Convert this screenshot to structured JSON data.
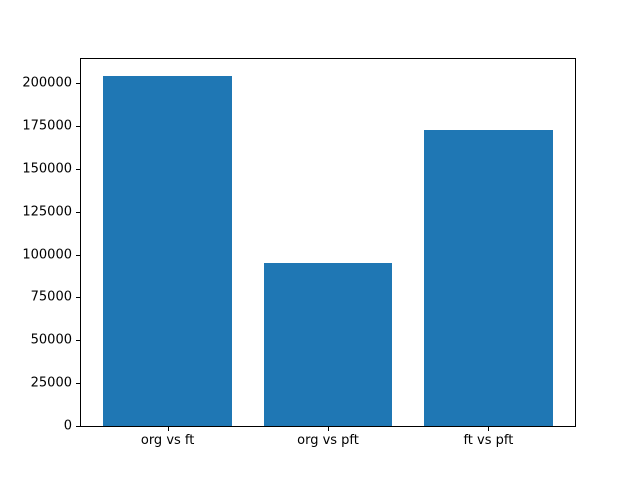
{
  "chart_data": {
    "type": "bar",
    "categories": [
      "org vs ft",
      "org vs pft",
      "ft vs pft"
    ],
    "values": [
      204000,
      95000,
      173000
    ],
    "title": "",
    "xlabel": "",
    "ylabel": "",
    "ylim": [
      0,
      214200
    ],
    "yticks": [
      0,
      25000,
      50000,
      75000,
      100000,
      125000,
      150000,
      175000,
      200000
    ],
    "bar_color": "#1f77b4",
    "grid": false,
    "legend": null,
    "background": "#ffffff"
  }
}
